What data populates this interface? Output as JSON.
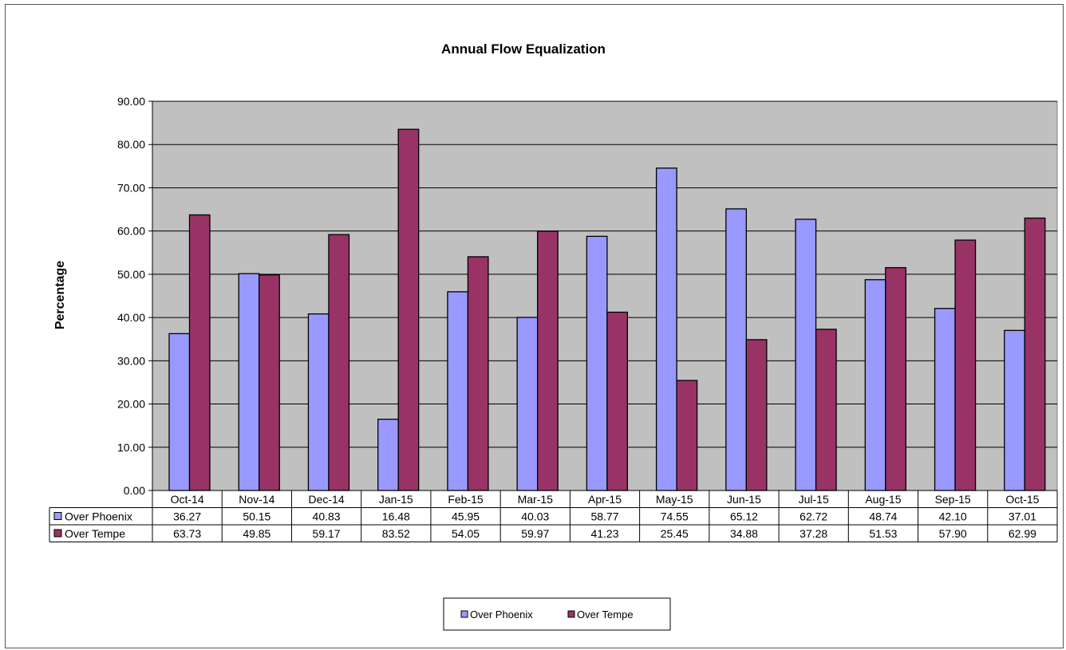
{
  "chart_data": {
    "type": "bar",
    "title": "Annual Flow Equalization",
    "xlabel": "",
    "ylabel": "Percentage",
    "ylim": [
      0,
      90
    ],
    "yticks": [
      "0.00",
      "10.00",
      "20.00",
      "30.00",
      "40.00",
      "50.00",
      "60.00",
      "70.00",
      "80.00",
      "90.00"
    ],
    "grid": true,
    "legend_position": "bottom",
    "categories": [
      "Oct-14",
      "Nov-14",
      "Dec-14",
      "Jan-15",
      "Feb-15",
      "Mar-15",
      "Apr-15",
      "May-15",
      "Jun-15",
      "Jul-15",
      "Aug-15",
      "Sep-15",
      "Oct-15"
    ],
    "series": [
      {
        "name": "Over Phoenix",
        "color": "#9999ff",
        "values": [
          36.27,
          50.15,
          40.83,
          16.48,
          45.95,
          40.03,
          58.77,
          74.55,
          65.12,
          62.72,
          48.74,
          42.1,
          37.01
        ],
        "labels": [
          "36.27",
          "50.15",
          "40.83",
          "16.48",
          "45.95",
          "40.03",
          "58.77",
          "74.55",
          "65.12",
          "62.72",
          "48.74",
          "42.10",
          "37.01"
        ]
      },
      {
        "name": "Over Tempe",
        "color": "#993366",
        "values": [
          63.73,
          49.85,
          59.17,
          83.52,
          54.05,
          59.97,
          41.23,
          25.45,
          34.88,
          37.28,
          51.53,
          57.9,
          62.99
        ],
        "labels": [
          "63.73",
          "49.85",
          "59.17",
          "83.52",
          "54.05",
          "59.97",
          "41.23",
          "25.45",
          "34.88",
          "37.28",
          "51.53",
          "57.90",
          "62.99"
        ]
      }
    ],
    "plot_background": "#c0c0c0"
  }
}
